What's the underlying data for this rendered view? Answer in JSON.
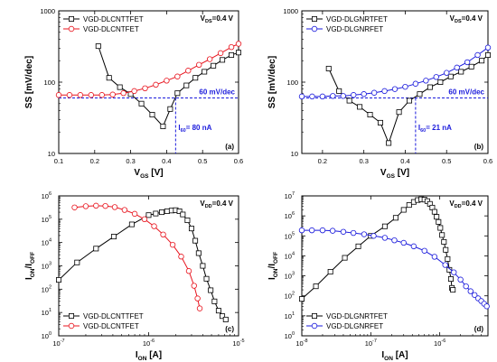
{
  "chart_data": [
    {
      "type": "line",
      "panel_label": "(a)",
      "xlabel": "V",
      "xlabel_sub": "GS",
      "xlabel_unit": " [V]",
      "ylabel": "SS [mV/dec]",
      "xlim": [
        0.1,
        0.6
      ],
      "ylim": [
        10,
        1000
      ],
      "yscale": "log",
      "xticks": [
        "0.1",
        "0.2",
        "0.3",
        "0.4",
        "0.5",
        "0.6"
      ],
      "yticks": [
        "10",
        "100",
        "1000"
      ],
      "corner_note": "V",
      "corner_note_sub": "DS",
      "corner_note_val": "=0.4 V",
      "hline": {
        "y": 60,
        "label": "60 mV/dec"
      },
      "vline": {
        "x": 0.425,
        "label": "I",
        "label_sub": "60",
        "label_val": "= 80 nA"
      },
      "series": [
        {
          "name": "VGD-DLCNTTFET",
          "color": "#000000",
          "marker": "square",
          "x": [
            0.21,
            0.24,
            0.27,
            0.3,
            0.33,
            0.36,
            0.39,
            0.41,
            0.43,
            0.455,
            0.48,
            0.505,
            0.53,
            0.555,
            0.58,
            0.6
          ],
          "y": [
            320,
            115,
            85,
            68,
            50,
            35,
            24,
            42,
            70,
            90,
            115,
            140,
            170,
            205,
            240,
            260
          ]
        },
        {
          "name": "VGD-DLCNTFET",
          "color": "#e8141e",
          "marker": "circle",
          "x": [
            0.1,
            0.13,
            0.16,
            0.19,
            0.22,
            0.25,
            0.28,
            0.31,
            0.34,
            0.37,
            0.4,
            0.43,
            0.46,
            0.49,
            0.52,
            0.55,
            0.58,
            0.6
          ],
          "y": [
            66,
            66,
            66,
            66,
            66,
            67,
            70,
            75,
            82,
            92,
            105,
            120,
            145,
            175,
            210,
            255,
            310,
            345
          ]
        }
      ]
    },
    {
      "type": "line",
      "panel_label": "(b)",
      "xlabel": "V",
      "xlabel_sub": "GS",
      "xlabel_unit": " [V]",
      "ylabel": "SS [mV/dec]",
      "xlim": [
        0.15,
        0.6
      ],
      "ylim": [
        10,
        1000
      ],
      "yscale": "log",
      "xticks": [
        "0.2",
        "0.3",
        "0.4",
        "0.5",
        "0.6"
      ],
      "yticks": [
        "10",
        "100",
        "1000"
      ],
      "corner_note": "V",
      "corner_note_sub": "DS",
      "corner_note_val": "=0.4 V",
      "hline": {
        "y": 60,
        "label": "60 mV/dec"
      },
      "vline": {
        "x": 0.425,
        "label": "I",
        "label_sub": "60",
        "label_val": "= 21 nA"
      },
      "series": [
        {
          "name": "VGD-DLGNRTFET",
          "color": "#000000",
          "marker": "square",
          "x": [
            0.215,
            0.24,
            0.265,
            0.29,
            0.315,
            0.34,
            0.36,
            0.385,
            0.41,
            0.435,
            0.46,
            0.485,
            0.51,
            0.535,
            0.56,
            0.585,
            0.6
          ],
          "y": [
            155,
            75,
            55,
            45,
            35,
            27,
            14,
            38,
            55,
            68,
            85,
            100,
            120,
            140,
            165,
            200,
            240
          ]
        },
        {
          "name": "VGD-DLGNRFET",
          "color": "#1a1adc",
          "marker": "circle",
          "x": [
            0.15,
            0.175,
            0.2,
            0.225,
            0.25,
            0.275,
            0.3,
            0.325,
            0.35,
            0.375,
            0.4,
            0.425,
            0.45,
            0.475,
            0.5,
            0.525,
            0.55,
            0.575,
            0.6
          ],
          "y": [
            63,
            63,
            63,
            64,
            64,
            66,
            68,
            71,
            75,
            80,
            86,
            95,
            105,
            118,
            135,
            160,
            190,
            240,
            305
          ]
        }
      ]
    },
    {
      "type": "line",
      "panel_label": "(c)",
      "xlabel": "I",
      "xlabel_sub": "ON",
      "xlabel_unit": " [A]",
      "ylabel": "I",
      "ylabel_sub1": "ON",
      "ylabel_mid": "/I",
      "ylabel_sub2": "OFF",
      "xlim": [
        1e-07,
        1e-05
      ],
      "ylim": [
        1,
        1000000
      ],
      "xscale": "log",
      "yscale": "log",
      "xticks": [
        "10",
        "10",
        "10"
      ],
      "xtick_exps": [
        "-7",
        "-6",
        "-5"
      ],
      "yticks": [
        "10",
        "10",
        "10",
        "10",
        "10",
        "10",
        "10"
      ],
      "ytick_exps": [
        "0",
        "1",
        "2",
        "3",
        "4",
        "5",
        "6"
      ],
      "corner_note": "V",
      "corner_note_sub": "DD",
      "corner_note_val": "=0.4 V",
      "legend_position": "bottom-left",
      "series": [
        {
          "name": "VGD-DLCNTTFET",
          "color": "#000000",
          "marker": "square",
          "x": [
            1e-07,
            1.6e-07,
            2.6e-07,
            4.1e-07,
            6.5e-07,
            1e-06,
            1.2e-06,
            1.4e-06,
            1.6e-06,
            1.8e-06,
            2e-06,
            2.2e-06,
            2.4e-06,
            2.7e-06,
            3e-06,
            3.3e-06,
            3.6e-06,
            4e-06,
            4.4e-06,
            4.9e-06,
            5.4e-06,
            6e-06,
            6.6e-06,
            7.2e-06
          ],
          "y": [
            250,
            1400,
            5500,
            18000,
            60000,
            150000,
            175000,
            200000,
            220000,
            235000,
            245000,
            220000,
            160000,
            90000,
            40000,
            12000,
            3500,
            1000,
            280,
            90,
            30,
            12,
            7,
            5
          ]
        },
        {
          "name": "VGD-DLCNTFET",
          "color": "#e8141e",
          "marker": "circle",
          "x": [
            1.5e-07,
            2e-07,
            2.6e-07,
            3.3e-07,
            4.2e-07,
            5.4e-07,
            7e-07,
            9e-07,
            1.15e-06,
            1.45e-06,
            1.85e-06,
            2.3e-06,
            2.8e-06,
            3.2e-06,
            3.5e-06,
            3.7e-06
          ],
          "y": [
            320000,
            360000,
            380000,
            370000,
            330000,
            250000,
            170000,
            100000,
            50000,
            22000,
            8000,
            2500,
            600,
            140,
            40,
            15
          ]
        }
      ]
    },
    {
      "type": "line",
      "panel_label": "(d)",
      "xlabel": "I",
      "xlabel_sub": "ON",
      "xlabel_unit": " [A]",
      "ylabel": "I",
      "ylabel_sub1": "ON",
      "ylabel_mid": "/I",
      "ylabel_sub2": "OFF",
      "xlim": [
        1e-08,
        5e-06
      ],
      "ylim": [
        1,
        10000000
      ],
      "xscale": "log",
      "yscale": "log",
      "xticks": [
        "10",
        "10",
        "10"
      ],
      "xtick_exps": [
        "-8",
        "-7",
        "-6"
      ],
      "yticks": [
        "10",
        "10",
        "10",
        "10",
        "10",
        "10",
        "10",
        "10"
      ],
      "ytick_exps": [
        "0",
        "1",
        "2",
        "3",
        "4",
        "5",
        "6",
        "7"
      ],
      "corner_note": "V",
      "corner_note_sub": "DD",
      "corner_note_val": "=0.4 V",
      "legend_position": "bottom-left",
      "series": [
        {
          "name": "VGD-DLGNRTFET",
          "color": "#000000",
          "marker": "square",
          "x": [
            1e-08,
            1.6e-08,
            2.6e-08,
            4.2e-08,
            6.6e-08,
            1e-07,
            1.6e-07,
            2.3e-07,
            3e-07,
            3.6e-07,
            4.2e-07,
            4.8e-07,
            5.4e-07,
            6e-07,
            6.6e-07,
            7.2e-07,
            7.8e-07,
            8.4e-07,
            9e-07,
            9.6e-07,
            1.02e-06,
            1.08e-06,
            1.15e-06,
            1.22e-06,
            1.3e-06,
            1.38e-06,
            1.45e-06,
            1.5e-06,
            1.55e-06
          ],
          "y": [
            70,
            300,
            1600,
            8000,
            30000,
            100000,
            300000,
            800000,
            2000000,
            3500000,
            5000000,
            6200000,
            6800000,
            6500000,
            5500000,
            4000000,
            2600000,
            1600000,
            900000,
            500000,
            250000,
            110000,
            50000,
            20000,
            7000,
            2000,
            700,
            250,
            200
          ]
        },
        {
          "name": "VGD-DLGNRFET",
          "color": "#1a1adc",
          "marker": "circle",
          "x": [
            1e-08,
            1.4e-08,
            2e-08,
            2.8e-08,
            4e-08,
            5.6e-08,
            8e-08,
            1.1e-07,
            1.6e-07,
            2.2e-07,
            3e-07,
            4.2e-07,
            6e-07,
            8.4e-07,
            1.2e-06,
            1.6e-06,
            2e-06,
            2.4e-06,
            2.8e-06,
            3.2e-06,
            3.6e-06,
            4e-06,
            4.4e-06,
            4.8e-06
          ],
          "y": [
            190000,
            190000,
            190000,
            180000,
            160000,
            140000,
            120000,
            100000,
            80000,
            60000,
            45000,
            30000,
            18000,
            9000,
            3500,
            1500,
            650,
            300,
            170,
            110,
            75,
            55,
            40,
            30
          ]
        }
      ]
    }
  ]
}
